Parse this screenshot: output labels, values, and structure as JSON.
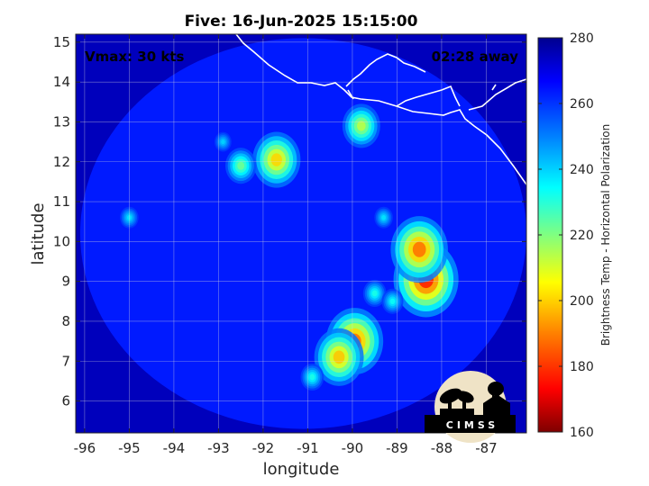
{
  "chart_data": {
    "type": "heatmap",
    "title": "Five: 16-Jun-2025 15:15:00",
    "xlabel": "longitude",
    "ylabel": "latitude",
    "xlim": [
      -96.2,
      -86.1
    ],
    "ylim": [
      5.2,
      15.2
    ],
    "xticks": [
      -96,
      -95,
      -94,
      -93,
      -92,
      -91,
      -90,
      -89,
      -88,
      -87
    ],
    "yticks": [
      6,
      7,
      8,
      9,
      10,
      11,
      12,
      13,
      14,
      15
    ],
    "grid": true,
    "annotations": {
      "left": "Vmax: 30 kts",
      "right": "02:28 away"
    },
    "colorbar": {
      "label": "Brightness Temp - Horizontal Polarization",
      "min": 160,
      "max": 280,
      "ticks": [
        160,
        180,
        200,
        220,
        240,
        260,
        280
      ],
      "colormap": [
        "#7f0000",
        "#ff0000",
        "#ff8000",
        "#ffff00",
        "#80ff80",
        "#00ffff",
        "#0080ff",
        "#0000ff",
        "#00008f"
      ]
    },
    "swath": {
      "center": [
        -91.1,
        10.2
      ],
      "radius_lon": 5.0,
      "radius_lat": 4.9,
      "background_value": 262
    },
    "outside_value": 274,
    "features": [
      {
        "lon": -91.7,
        "lat": 12.05,
        "min_value": 200
      },
      {
        "lon": -92.5,
        "lat": 11.9,
        "min_value": 222
      },
      {
        "lon": -89.8,
        "lat": 12.9,
        "min_value": 213
      },
      {
        "lon": -88.35,
        "lat": 9.05,
        "min_value": 178
      },
      {
        "lon": -88.5,
        "lat": 9.8,
        "min_value": 188
      },
      {
        "lon": -89.95,
        "lat": 7.5,
        "min_value": 188
      },
      {
        "lon": -90.3,
        "lat": 7.1,
        "min_value": 198
      },
      {
        "lon": -89.5,
        "lat": 8.7,
        "min_value": 232
      },
      {
        "lon": -89.1,
        "lat": 8.5,
        "min_value": 234
      },
      {
        "lon": -90.9,
        "lat": 6.6,
        "min_value": 232
      },
      {
        "lon": -92.9,
        "lat": 12.5,
        "min_value": 240
      },
      {
        "lon": -95.0,
        "lat": 10.6,
        "min_value": 238
      },
      {
        "lon": -89.3,
        "lat": 10.6,
        "min_value": 238
      }
    ],
    "logo_text": "CIMSS"
  }
}
